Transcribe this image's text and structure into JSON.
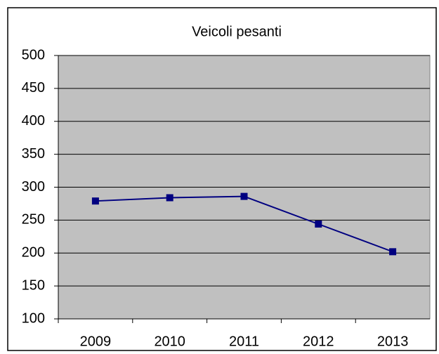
{
  "chart_data": {
    "type": "line",
    "title": "Veicoli pesanti",
    "categories": [
      "2009",
      "2010",
      "2011",
      "2012",
      "2013"
    ],
    "series": [
      {
        "name": "Veicoli pesanti",
        "color": "#000080",
        "values": [
          279,
          284,
          286,
          244,
          202
        ]
      }
    ],
    "ylim": [
      100,
      500
    ],
    "yticks": [
      100,
      150,
      200,
      250,
      300,
      350,
      400,
      450,
      500
    ],
    "grid": true
  }
}
